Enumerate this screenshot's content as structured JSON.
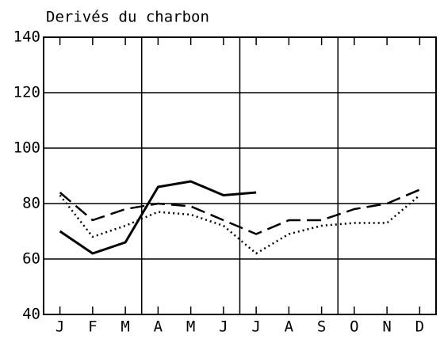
{
  "chart_data": {
    "type": "line",
    "title": "Derivés du charbon",
    "categories": [
      "J",
      "F",
      "M",
      "A",
      "M",
      "J",
      "J",
      "A",
      "S",
      "O",
      "N",
      "D"
    ],
    "series": [
      {
        "color": "#000000",
        "dash": "solid",
        "values": [
          70,
          62,
          66,
          86,
          88,
          83,
          84,
          null,
          null,
          null,
          null,
          null
        ]
      },
      {
        "color": "#000000",
        "dash": "dashed",
        "values": [
          84,
          74,
          78,
          80,
          79,
          74,
          69,
          74,
          74,
          78,
          80,
          85
        ]
      },
      {
        "color": "#000000",
        "dash": "dotted",
        "values": [
          83,
          68,
          72,
          77,
          76,
          72,
          62,
          69,
          72,
          73,
          73,
          83
        ]
      }
    ],
    "ylim": [
      40,
      140
    ],
    "yticks": [
      40,
      60,
      80,
      100,
      120,
      140
    ],
    "grid": true
  }
}
